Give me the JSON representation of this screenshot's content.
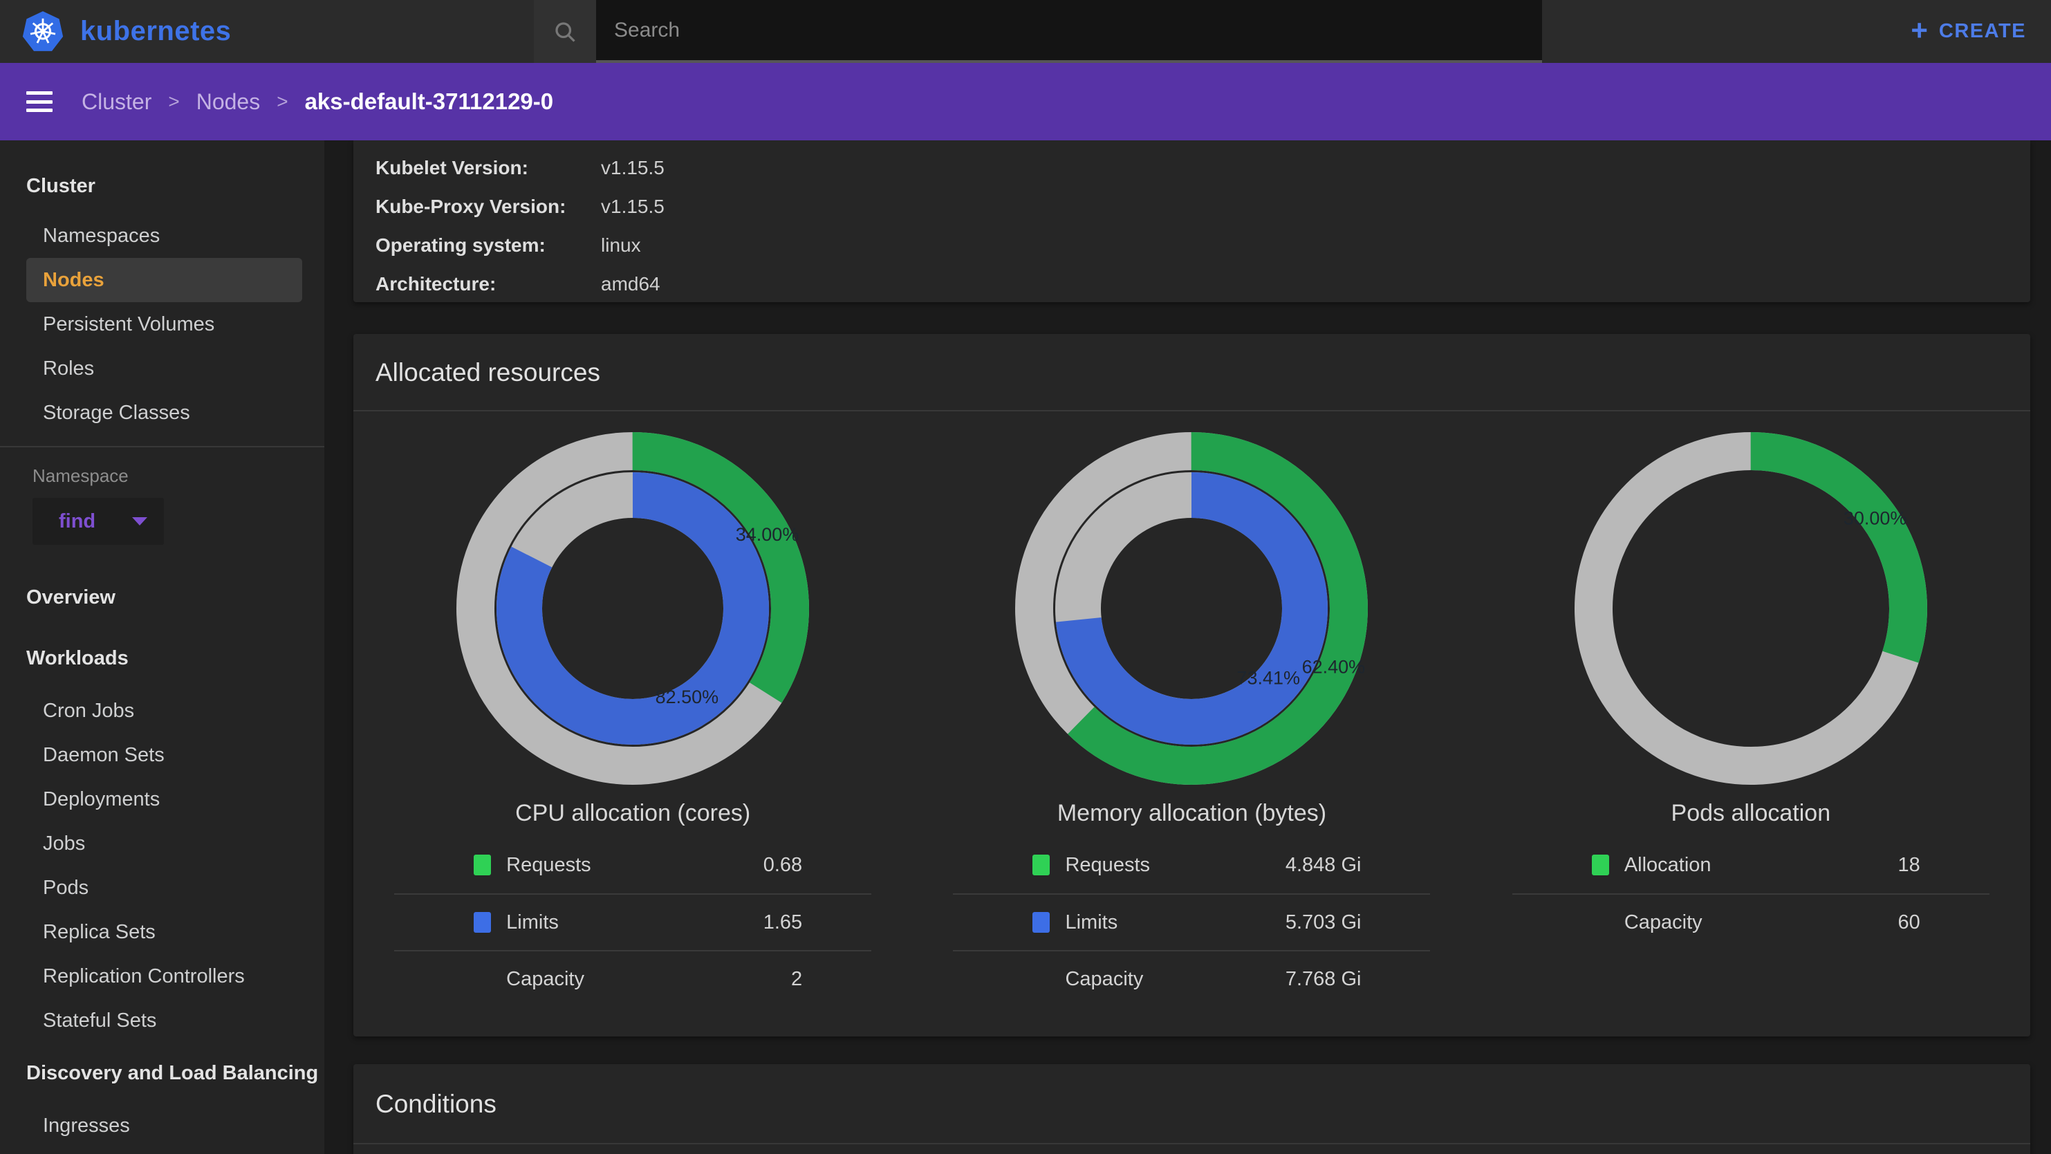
{
  "header": {
    "brand": "kubernetes",
    "search_placeholder": "Search",
    "create_label": "CREATE",
    "create_plus": "+"
  },
  "breadcrumb": {
    "items": [
      "Cluster",
      "Nodes"
    ],
    "separator": ">",
    "current": "aks-default-37112129-0"
  },
  "sidebar": {
    "cluster_header": "Cluster",
    "cluster_items": [
      "Namespaces",
      "Nodes",
      "Persistent Volumes",
      "Roles",
      "Storage Classes"
    ],
    "active_item": "Nodes",
    "namespace_label": "Namespace",
    "namespace_value": "find",
    "overview": "Overview",
    "workloads_header": "Workloads",
    "workloads_items": [
      "Cron Jobs",
      "Daemon Sets",
      "Deployments",
      "Jobs",
      "Pods",
      "Replica Sets",
      "Replication Controllers",
      "Stateful Sets"
    ],
    "discovery_header": "Discovery and Load Balancing",
    "discovery_items": [
      "Ingresses"
    ]
  },
  "node_info": {
    "rows": [
      {
        "label": "Kubelet Version:",
        "value": "v1.15.5"
      },
      {
        "label": "Kube-Proxy Version:",
        "value": "v1.15.5"
      },
      {
        "label": "Operating system:",
        "value": "linux"
      },
      {
        "label": "Architecture:",
        "value": "amd64"
      }
    ]
  },
  "allocated_resources": {
    "title": "Allocated resources"
  },
  "conditions": {
    "title": "Conditions"
  },
  "chart_data": [
    {
      "type": "pie",
      "title": "CPU allocation (cores)",
      "rings": [
        {
          "name": "Requests",
          "percent": 34.0,
          "color": "green",
          "label": "34.00%"
        },
        {
          "name": "Limits",
          "percent": 82.5,
          "color": "blue",
          "label": "82.50%"
        }
      ],
      "legend": [
        {
          "swatch": "green",
          "label": "Requests",
          "value": "0.68"
        },
        {
          "swatch": "blue",
          "label": "Limits",
          "value": "1.65"
        },
        {
          "swatch": null,
          "label": "Capacity",
          "value": "2"
        }
      ]
    },
    {
      "type": "pie",
      "title": "Memory allocation (bytes)",
      "rings": [
        {
          "name": "Requests",
          "percent": 62.4,
          "color": "green",
          "label": "62.40%"
        },
        {
          "name": "Limits",
          "percent": 73.41,
          "color": "blue",
          "label": "73.41%"
        }
      ],
      "legend": [
        {
          "swatch": "green",
          "label": "Requests",
          "value": "4.848 Gi"
        },
        {
          "swatch": "blue",
          "label": "Limits",
          "value": "5.703 Gi"
        },
        {
          "swatch": null,
          "label": "Capacity",
          "value": "7.768 Gi"
        }
      ]
    },
    {
      "type": "pie",
      "title": "Pods allocation",
      "rings": [
        {
          "name": "Allocation",
          "percent": 30.0,
          "color": "green",
          "label": "30.00%"
        }
      ],
      "legend": [
        {
          "swatch": "green",
          "label": "Allocation",
          "value": "18"
        },
        {
          "swatch": null,
          "label": "Capacity",
          "value": "60"
        }
      ]
    }
  ],
  "colors": {
    "accent_purple": "#5733a6",
    "brand_blue": "#3e73e8",
    "create_blue": "#4d7ce8",
    "active_item_orange": "#e9a23b",
    "namespace_purple": "#7e4fd0",
    "chart_green": "#22a24d",
    "chart_blue": "#3d66d3",
    "chart_gray": "#b9b9b9",
    "legend_green": "#2fd155",
    "legend_blue": "#3d6ee6",
    "pct_label": "#1d252e"
  }
}
